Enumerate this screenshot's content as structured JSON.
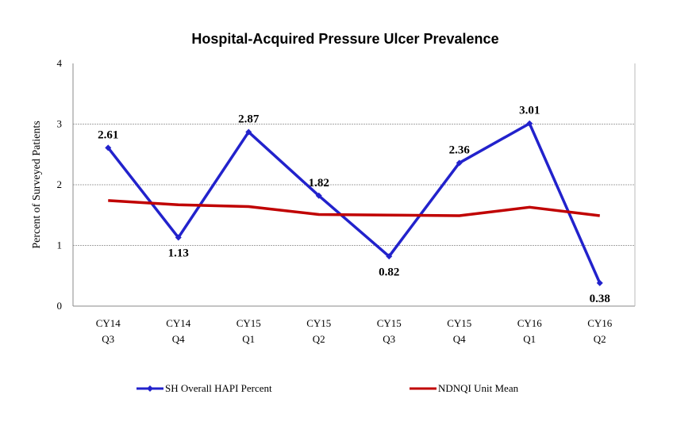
{
  "chart_data": {
    "type": "line",
    "title": "Hospital-Acquired Pressure Ulcer Prevalence",
    "xlabel": "",
    "ylabel": "Percent of Surveyed Patients",
    "ylim": [
      0,
      4
    ],
    "yticks": [
      "0",
      "1",
      "2",
      "3",
      "4"
    ],
    "grid": true,
    "legend_position": "bottom",
    "categories": [
      [
        "CY14",
        "Q3"
      ],
      [
        "CY14",
        "Q4"
      ],
      [
        "CY15",
        "Q1"
      ],
      [
        "CY15",
        "Q2"
      ],
      [
        "CY15",
        "Q3"
      ],
      [
        "CY15",
        "Q4"
      ],
      [
        "CY16",
        "Q1"
      ],
      [
        "CY16",
        "Q2"
      ]
    ],
    "series": [
      {
        "name": "SH Overall HAPI Percent",
        "color": "#2222cc",
        "marker": "diamond",
        "values": [
          2.61,
          1.13,
          2.87,
          1.82,
          0.82,
          2.36,
          3.01,
          0.38
        ],
        "labels": [
          "2.61",
          "1.13",
          "2.87",
          "1.82",
          "0.82",
          "2.36",
          "3.01",
          "0.38"
        ]
      },
      {
        "name": "NDNQI Unit Mean",
        "color": "#c00000",
        "marker": "none",
        "values": [
          1.74,
          1.67,
          1.64,
          1.51,
          1.5,
          1.49,
          1.63,
          1.49
        ]
      }
    ]
  }
}
